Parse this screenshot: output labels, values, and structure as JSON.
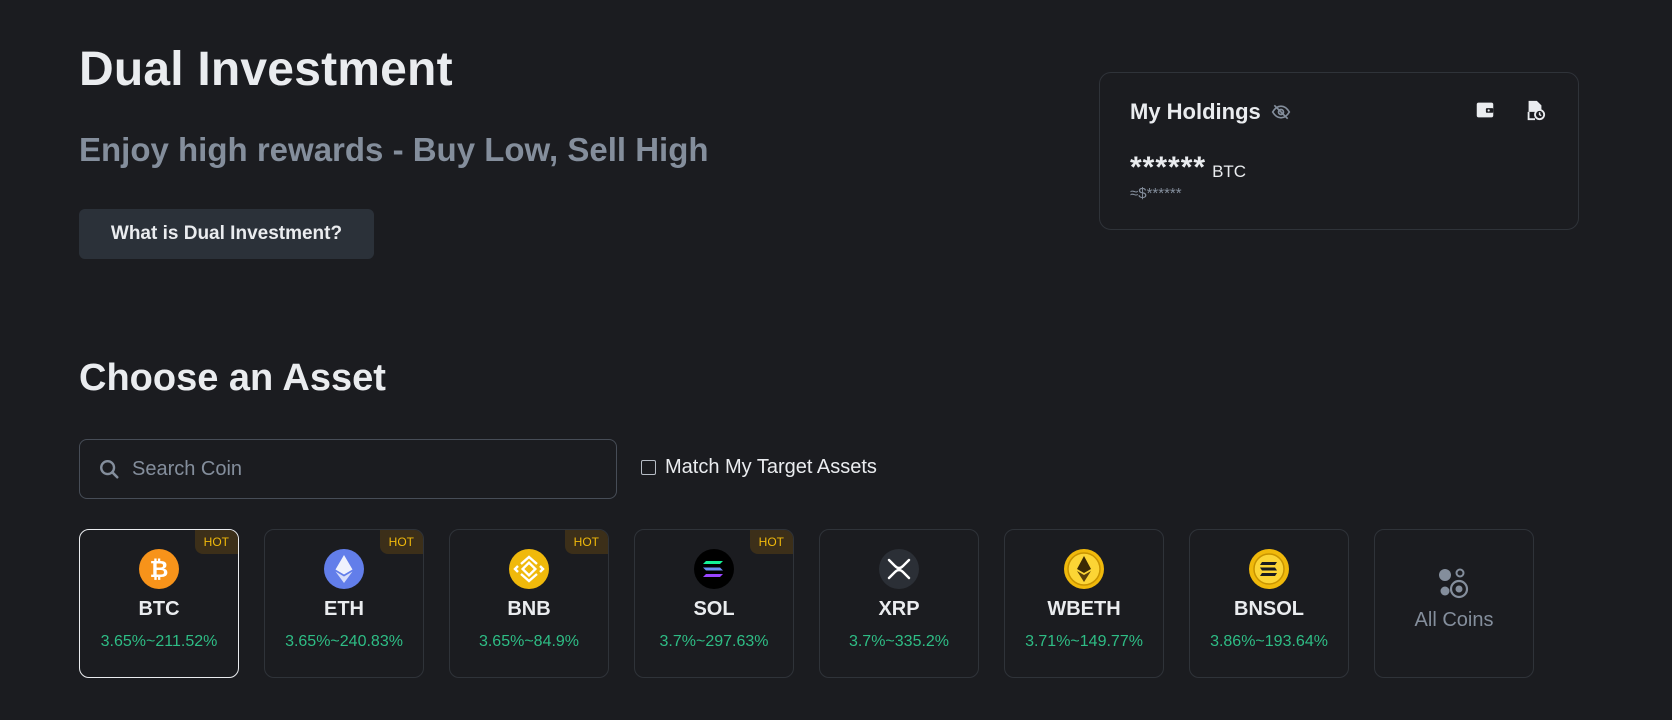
{
  "hero": {
    "title": "Dual Investment",
    "subtitle": "Enjoy high rewards - Buy Low, Sell High",
    "what_button": "What is Dual Investment?"
  },
  "holdings": {
    "title": "My Holdings",
    "amount": "******",
    "unit": "BTC",
    "usd": "≈$******"
  },
  "assets": {
    "title": "Choose an Asset",
    "search_placeholder": "Search Coin",
    "match_label": "Match My Target Assets",
    "cards": [
      {
        "symbol": "BTC",
        "apr": "3.65%~211.52%",
        "hot": "HOT",
        "icon": "btc-icon",
        "color": "#f7931a"
      },
      {
        "symbol": "ETH",
        "apr": "3.65%~240.83%",
        "hot": "HOT",
        "icon": "eth-icon",
        "color": "#627eea"
      },
      {
        "symbol": "BNB",
        "apr": "3.65%~84.9%",
        "hot": "HOT",
        "icon": "bnb-icon",
        "color": "#f0b90b"
      },
      {
        "symbol": "SOL",
        "apr": "3.7%~297.63%",
        "hot": "HOT",
        "icon": "sol-icon",
        "color": "#000000"
      },
      {
        "symbol": "XRP",
        "apr": "3.7%~335.2%",
        "icon": "xrp-icon",
        "color": "#23292f"
      },
      {
        "symbol": "WBETH",
        "apr": "3.71%~149.77%",
        "icon": "wbeth-icon",
        "color": "#f0b90b"
      },
      {
        "symbol": "BNSOL",
        "apr": "3.86%~193.64%",
        "icon": "bnsol-icon",
        "color": "#f0b90b"
      }
    ],
    "all_coins_label": "All Coins"
  },
  "colors": {
    "background": "#1b1c20",
    "positive": "#2ebd85",
    "hot": "#f0b90b",
    "muted": "#848e9c"
  }
}
